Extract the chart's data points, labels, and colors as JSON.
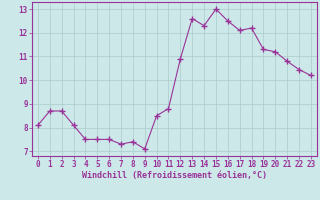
{
  "x": [
    0,
    1,
    2,
    3,
    4,
    5,
    6,
    7,
    8,
    9,
    10,
    11,
    12,
    13,
    14,
    15,
    16,
    17,
    18,
    19,
    20,
    21,
    22,
    23
  ],
  "y": [
    8.1,
    8.7,
    8.7,
    8.1,
    7.5,
    7.5,
    7.5,
    7.3,
    7.4,
    7.1,
    8.5,
    8.8,
    10.9,
    12.6,
    12.3,
    13.0,
    12.5,
    12.1,
    12.2,
    11.3,
    11.2,
    10.8,
    10.45,
    10.2
  ],
  "line_color": "#993399",
  "marker": "+",
  "marker_size": 4,
  "marker_lw": 1.0,
  "bg_color": "#cce8e8",
  "grid_color": "#aacccc",
  "xlabel": "Windchill (Refroidissement éolien,°C)",
  "ylabel": "",
  "title": "",
  "xlim": [
    -0.5,
    23.5
  ],
  "ylim": [
    6.8,
    13.3
  ],
  "yticks": [
    7,
    8,
    9,
    10,
    11,
    12,
    13
  ],
  "xticks": [
    0,
    1,
    2,
    3,
    4,
    5,
    6,
    7,
    8,
    9,
    10,
    11,
    12,
    13,
    14,
    15,
    16,
    17,
    18,
    19,
    20,
    21,
    22,
    23
  ],
  "tick_fontsize": 5.5,
  "xlabel_fontsize": 6.0,
  "spine_color": "#993399",
  "tick_color": "#993399",
  "label_color": "#993399"
}
